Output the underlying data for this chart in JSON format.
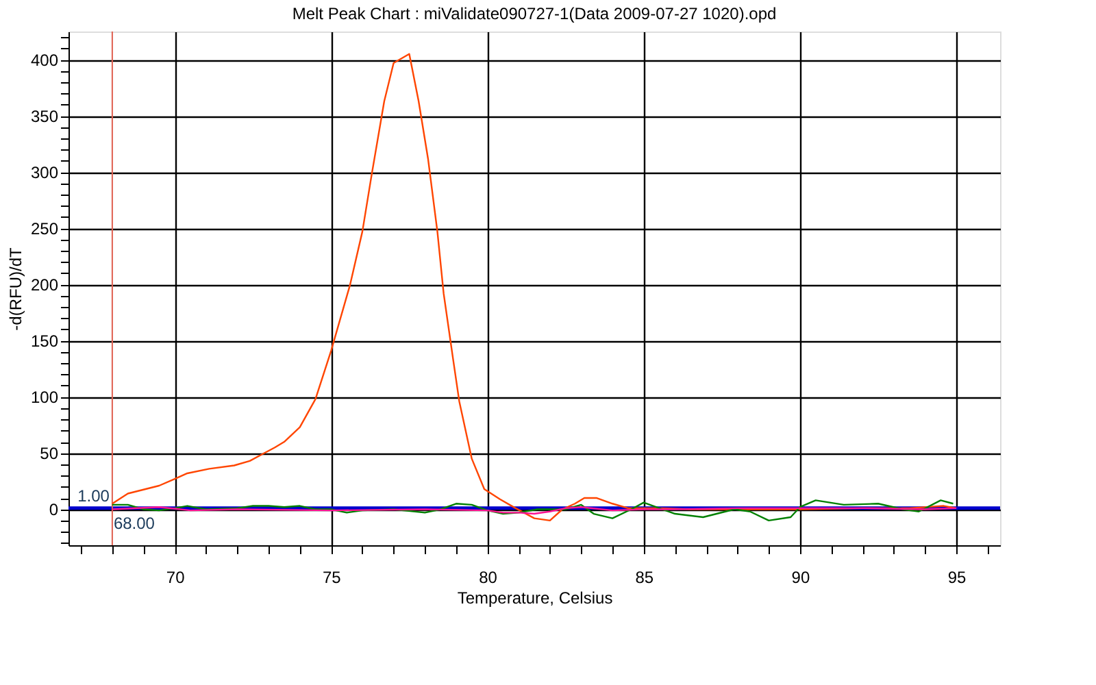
{
  "chart_data": {
    "type": "line",
    "title": "Melt Peak Chart : miValidate090727-1(Data 2009-07-27 1020).opd",
    "xlabel": "Temperature, Celsius",
    "ylabel": "-d(RFU)/dT",
    "xlim": [
      66.6,
      96.4
    ],
    "ylim": [
      -32,
      425
    ],
    "xticks": [
      {
        "value": 67,
        "label": null
      },
      {
        "value": 68,
        "label": null
      },
      {
        "value": 69,
        "label": null
      },
      70,
      {
        "value": 71,
        "label": null
      },
      {
        "value": 72,
        "label": null
      },
      {
        "value": 73,
        "label": null
      },
      {
        "value": 74,
        "label": null
      },
      75,
      {
        "value": 76,
        "label": null
      },
      {
        "value": 77,
        "label": null
      },
      {
        "value": 78,
        "label": null
      },
      {
        "value": 79,
        "label": null
      },
      80,
      {
        "value": 81,
        "label": null
      },
      {
        "value": 82,
        "label": null
      },
      {
        "value": 83,
        "label": null
      },
      {
        "value": 84,
        "label": null
      },
      85,
      {
        "value": 86,
        "label": null
      },
      {
        "value": 87,
        "label": null
      },
      {
        "value": 88,
        "label": null
      },
      {
        "value": 89,
        "label": null
      },
      90,
      {
        "value": 91,
        "label": null
      },
      {
        "value": 92,
        "label": null
      },
      {
        "value": 93,
        "label": null
      },
      {
        "value": 94,
        "label": null
      },
      95,
      {
        "value": 96,
        "label": null
      }
    ],
    "yticks": [
      {
        "value": -30,
        "label": null
      },
      {
        "value": -20,
        "label": null
      },
      {
        "value": -10,
        "label": null
      },
      0,
      {
        "value": 10,
        "label": null
      },
      {
        "value": 20,
        "label": null
      },
      {
        "value": 30,
        "label": null
      },
      {
        "value": 40,
        "label": null
      },
      50,
      {
        "value": 60,
        "label": null
      },
      {
        "value": 70,
        "label": null
      },
      {
        "value": 80,
        "label": null
      },
      {
        "value": 90,
        "label": null
      },
      100,
      {
        "value": 110,
        "label": null
      },
      {
        "value": 120,
        "label": null
      },
      {
        "value": 130,
        "label": null
      },
      {
        "value": 140,
        "label": null
      },
      150,
      {
        "value": 160,
        "label": null
      },
      {
        "value": 170,
        "label": null
      },
      {
        "value": 180,
        "label": null
      },
      {
        "value": 190,
        "label": null
      },
      200,
      {
        "value": 210,
        "label": null
      },
      {
        "value": 220,
        "label": null
      },
      {
        "value": 230,
        "label": null
      },
      {
        "value": 240,
        "label": null
      },
      250,
      {
        "value": 260,
        "label": null
      },
      {
        "value": 270,
        "label": null
      },
      {
        "value": 280,
        "label": null
      },
      {
        "value": 290,
        "label": null
      },
      300,
      {
        "value": 310,
        "label": null
      },
      {
        "value": 320,
        "label": null
      },
      {
        "value": 330,
        "label": null
      },
      {
        "value": 340,
        "label": null
      },
      350,
      {
        "value": 360,
        "label": null
      },
      {
        "value": 370,
        "label": null
      },
      {
        "value": 380,
        "label": null
      },
      {
        "value": 390,
        "label": null
      },
      400,
      {
        "value": 410,
        "label": null
      },
      {
        "value": 420,
        "label": null
      }
    ],
    "grid": true,
    "line_style": "solid",
    "series": [
      {
        "color": "#ff4500",
        "x": [
          68.0,
          68.5,
          69.5,
          70.0,
          70.4,
          71.1,
          71.9,
          72.4,
          72.8,
          73.2,
          73.5,
          74.0,
          74.5,
          75.0,
          75.6,
          76.0,
          76.3,
          76.7,
          77.0,
          77.5,
          77.8,
          78.1,
          78.4,
          78.6,
          78.9,
          79.1,
          79.5,
          79.9,
          80.4,
          80.9,
          81.5,
          82.0,
          82.4,
          82.8,
          83.1,
          83.5,
          84.0,
          84.5,
          85.5,
          86.5,
          88.0,
          90.0,
          92.0,
          93.5,
          94.6,
          95.0
        ],
        "values": [
          5,
          14,
          21,
          27,
          32,
          36,
          39,
          43,
          49,
          55,
          60,
          73,
          98,
          141,
          199,
          247,
          298,
          363,
          397,
          405,
          363,
          312,
          247,
          192,
          134,
          96,
          45,
          18,
          9,
          1,
          -8,
          -10,
          0,
          5,
          10,
          10,
          5,
          1,
          1,
          0,
          0,
          0,
          1,
          1,
          3,
          1
        ]
      },
      {
        "color": "#008000",
        "x": [
          68.0,
          68.5,
          69.0,
          69.5,
          70.0,
          70.4,
          71.0,
          72.0,
          72.5,
          73.0,
          73.5,
          74.0,
          74.5,
          75.0,
          75.5,
          76.0,
          77.0,
          78.0,
          78.5,
          79.0,
          79.5,
          80.0,
          80.5,
          81.0,
          81.6,
          82.5,
          83.0,
          83.4,
          84.0,
          84.6,
          85.0,
          86.0,
          86.9,
          87.9,
          88.4,
          89.0,
          89.7,
          90.0,
          90.5,
          91.4,
          92.5,
          93.3,
          93.8,
          94.5,
          94.9
        ],
        "values": [
          4,
          4,
          0,
          -1,
          1,
          3,
          0,
          1,
          3,
          3,
          2,
          3,
          0,
          0,
          -3,
          -1,
          0,
          -3,
          0,
          5,
          4,
          -1,
          -4,
          -3,
          0,
          0,
          4,
          -4,
          -8,
          0,
          6,
          -4,
          -7,
          0,
          -2,
          -10,
          -7,
          2,
          8,
          4,
          5,
          0,
          -2,
          8,
          5
        ]
      },
      {
        "color": "#ff1493",
        "x": [
          68.0,
          69.5,
          70.5,
          72.0,
          75.0,
          78.0,
          80.0,
          80.5,
          81.0,
          81.5,
          82.0,
          82.5,
          83.0,
          84.0,
          85.0,
          86.0,
          88.0,
          90.0,
          92.0,
          94.0,
          95.0
        ],
        "values": [
          0,
          2,
          -1,
          0,
          -1,
          0,
          -1,
          -3,
          -3,
          -4,
          -2,
          1,
          2,
          -1,
          0,
          0,
          1,
          1,
          1,
          0,
          1
        ]
      }
    ],
    "ref_lines": [
      {
        "axis": "y",
        "value": 1,
        "label": "1.00",
        "color": "#0000cc"
      },
      {
        "axis": "x",
        "value": 68,
        "label": "68.00",
        "color": "#e06050"
      }
    ]
  }
}
